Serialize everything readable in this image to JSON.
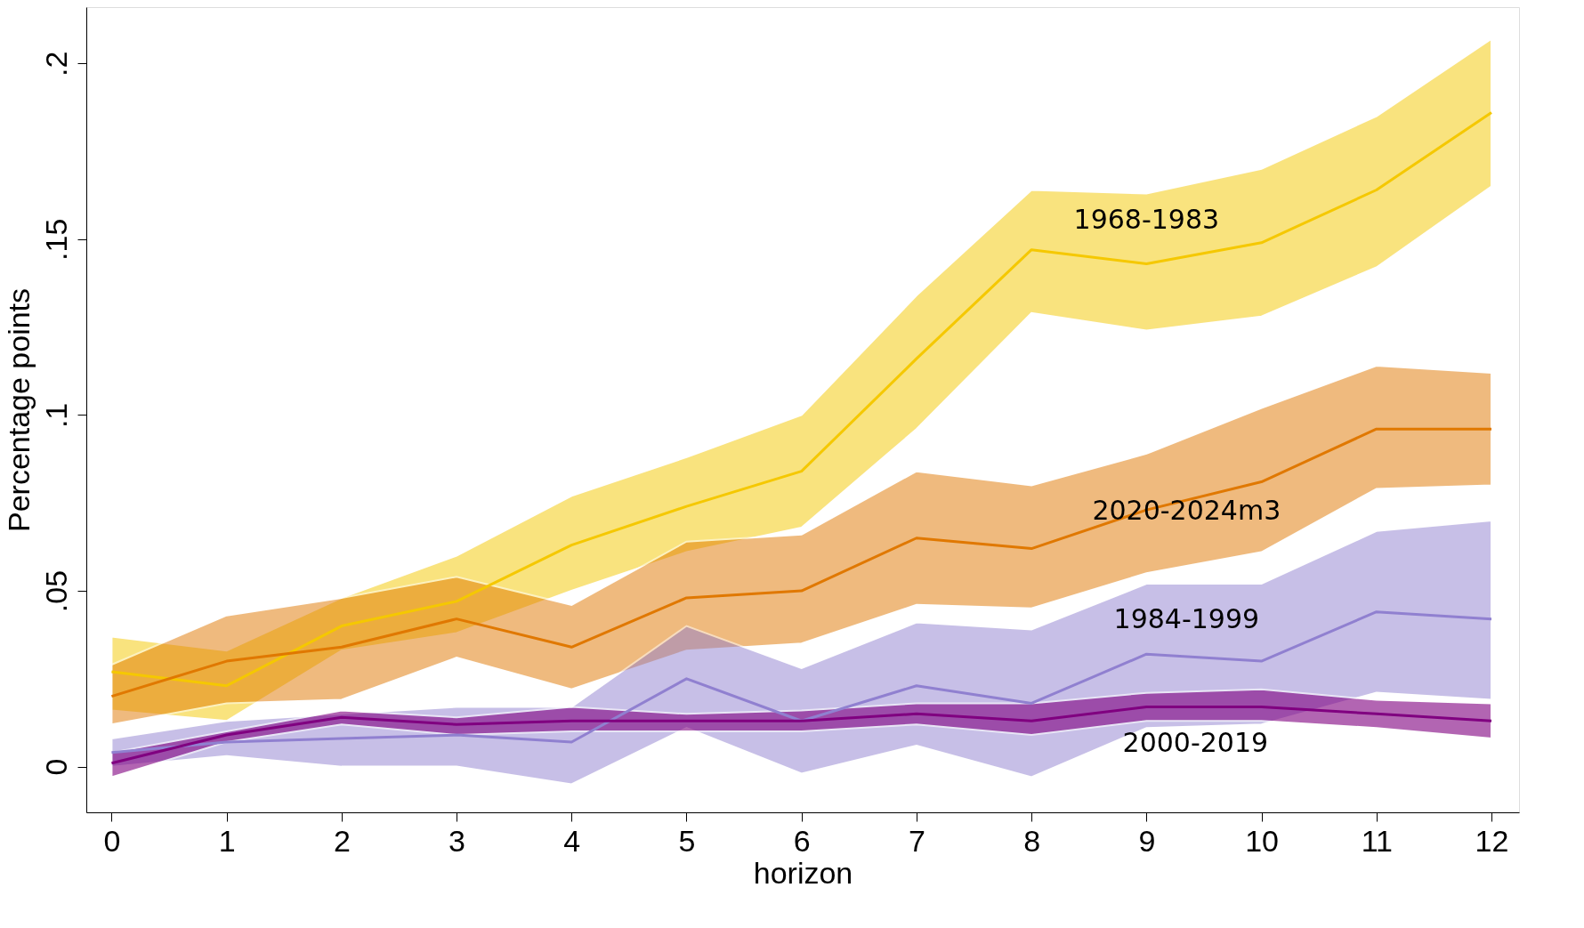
{
  "chart_data": {
    "type": "line",
    "xlabel": "horizon",
    "ylabel": "Percentage points",
    "x": [
      0,
      1,
      2,
      3,
      4,
      5,
      6,
      7,
      8,
      9,
      10,
      11,
      12
    ],
    "xlim": [
      -0.22,
      12.24
    ],
    "xticks": [
      0,
      1,
      2,
      3,
      4,
      5,
      6,
      7,
      8,
      9,
      10,
      11,
      12
    ],
    "ylim": [
      -0.013,
      0.216
    ],
    "yticks": [
      {
        "value": 0,
        "label": "0"
      },
      {
        "value": 0.05,
        "label": ".05"
      },
      {
        "value": 0.1,
        "label": ".1"
      },
      {
        "value": 0.15,
        "label": ".15"
      },
      {
        "value": 0.2,
        "label": ".2"
      }
    ],
    "grid": false,
    "marker": "none",
    "line_style": "solid",
    "series": [
      {
        "name": "1968-1983",
        "color": "#f5c800",
        "values": [
          0.027,
          0.023,
          0.04,
          0.047,
          0.063,
          0.074,
          0.084,
          0.116,
          0.147,
          0.143,
          0.149,
          0.164,
          0.186
        ],
        "upper": [
          0.037,
          0.033,
          0.048,
          0.06,
          0.077,
          0.088,
          0.1,
          0.134,
          0.164,
          0.163,
          0.17,
          0.185,
          0.207
        ],
        "lower": [
          0.016,
          0.013,
          0.033,
          0.038,
          0.05,
          0.061,
          0.068,
          0.096,
          0.129,
          0.124,
          0.128,
          0.142,
          0.165
        ]
      },
      {
        "name": "2020-2024m3",
        "color": "#e07800",
        "values": [
          0.02,
          0.03,
          0.034,
          0.042,
          0.034,
          0.048,
          0.05,
          0.065,
          0.062,
          0.073,
          0.081,
          0.096,
          0.096
        ],
        "upper": [
          0.029,
          0.043,
          0.048,
          0.054,
          0.046,
          0.064,
          0.066,
          0.084,
          0.08,
          0.089,
          0.102,
          0.114,
          0.112
        ],
        "lower": [
          0.012,
          0.018,
          0.019,
          0.031,
          0.022,
          0.033,
          0.035,
          0.046,
          0.045,
          0.055,
          0.061,
          0.079,
          0.08
        ]
      },
      {
        "name": "1984-1999",
        "color": "#9080d0",
        "values": [
          0.004,
          0.007,
          0.008,
          0.009,
          0.007,
          0.025,
          0.013,
          0.023,
          0.018,
          0.032,
          0.03,
          0.044,
          0.042
        ],
        "upper": [
          0.008,
          0.013,
          0.015,
          0.017,
          0.017,
          0.04,
          0.028,
          0.041,
          0.039,
          0.052,
          0.052,
          0.067,
          0.07
        ],
        "lower": [
          0.0,
          0.003,
          0.0,
          0.0,
          -0.005,
          0.011,
          -0.002,
          0.006,
          -0.003,
          0.011,
          0.012,
          0.021,
          0.019
        ]
      },
      {
        "name": "2000-2019",
        "color": "#800080",
        "values": [
          0.001,
          0.009,
          0.014,
          0.012,
          0.013,
          0.013,
          0.013,
          0.015,
          0.013,
          0.017,
          0.017,
          0.015,
          0.013
        ],
        "upper": [
          0.004,
          0.01,
          0.016,
          0.014,
          0.017,
          0.015,
          0.016,
          0.018,
          0.018,
          0.021,
          0.022,
          0.019,
          0.018
        ],
        "lower": [
          -0.003,
          0.007,
          0.012,
          0.009,
          0.01,
          0.01,
          0.01,
          0.012,
          0.009,
          0.013,
          0.013,
          0.011,
          0.008
        ]
      }
    ]
  }
}
